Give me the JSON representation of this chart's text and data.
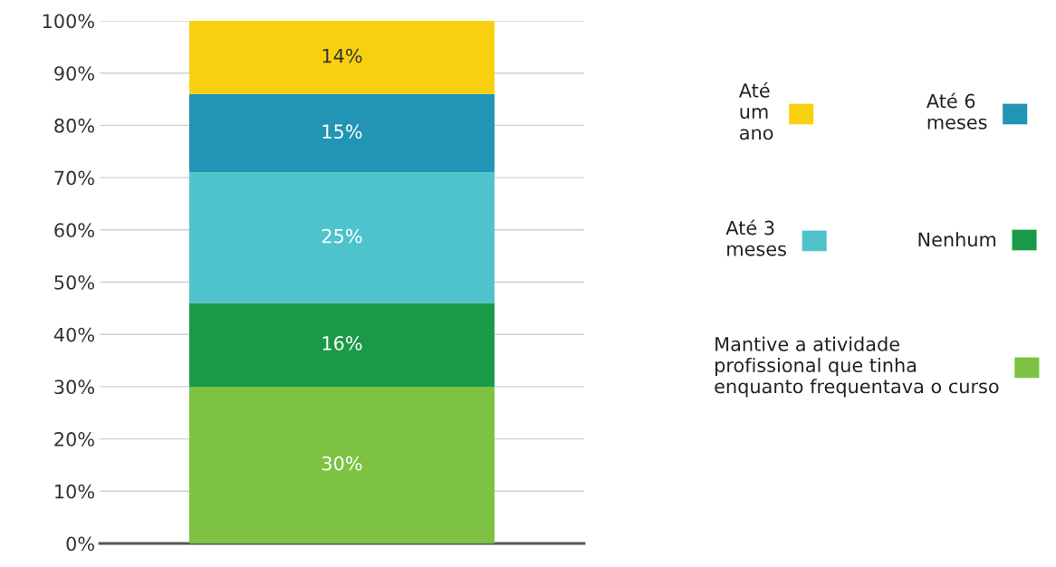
{
  "chart_data": {
    "type": "bar",
    "stacked": true,
    "categories": [
      null
    ],
    "series": [
      {
        "name": "Mantive a atividade profissional que tinha enquanto frequentava o curso",
        "color": "#7dc242",
        "values": [
          30
        ],
        "value_labels": [
          "30%"
        ]
      },
      {
        "name": "Nenhum",
        "color": "#1a9a48",
        "values": [
          16
        ],
        "value_labels": [
          "16%"
        ]
      },
      {
        "name": "Até 3 meses",
        "color": "#4fc3cc",
        "values": [
          25
        ],
        "value_labels": [
          "25%"
        ]
      },
      {
        "name": "Até 6 meses",
        "color": "#2294b5",
        "values": [
          15
        ],
        "value_labels": [
          "15%"
        ]
      },
      {
        "name": "Até um ano",
        "color": "#f9d00f",
        "values": [
          14
        ],
        "value_labels": [
          "14%"
        ]
      }
    ],
    "ylim": [
      0,
      100
    ],
    "yticks": [
      {
        "value": 0,
        "label": "0%"
      },
      {
        "value": 10,
        "label": "10%"
      },
      {
        "value": 20,
        "label": "20%"
      },
      {
        "value": 30,
        "label": "30%"
      },
      {
        "value": 40,
        "label": "40%"
      },
      {
        "value": 50,
        "label": "50%"
      },
      {
        "value": 60,
        "label": "60%"
      },
      {
        "value": 70,
        "label": "70%"
      },
      {
        "value": 80,
        "label": "80%"
      },
      {
        "value": 90,
        "label": "90%"
      },
      {
        "value": 100,
        "label": "100%"
      }
    ],
    "grid": "y",
    "legend": "right",
    "tick_labels": "y"
  }
}
